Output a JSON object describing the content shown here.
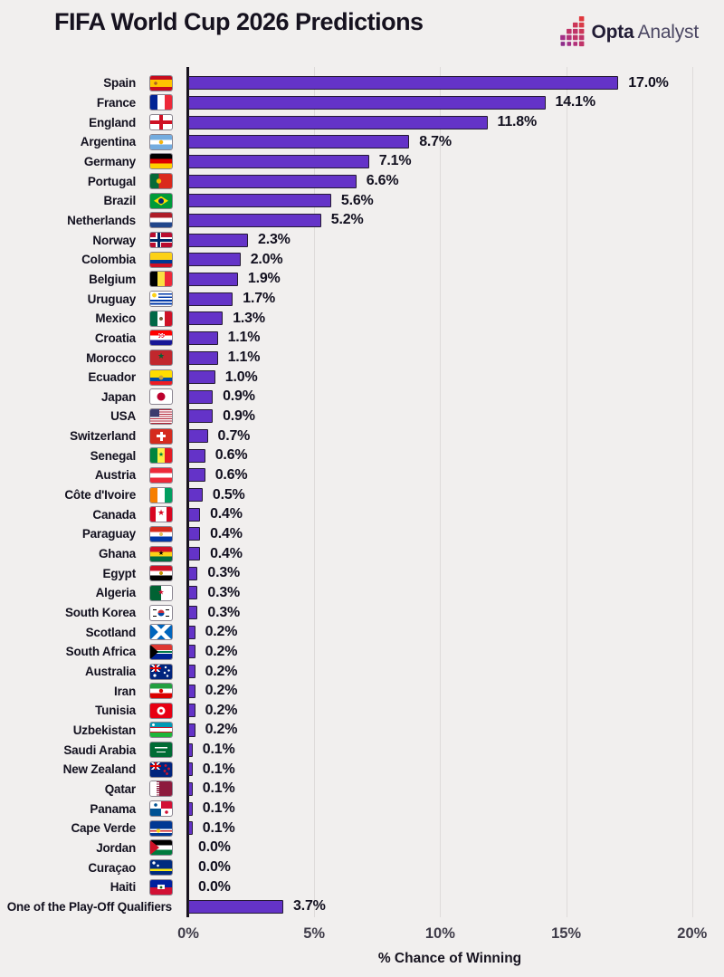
{
  "header": {
    "title": "FIFA World Cup 2026 Predictions",
    "logo": {
      "brand_bold": "Opta",
      "brand_light": "Analyst"
    }
  },
  "colors": {
    "background": "#f1efee",
    "bar_fill": "#6433c8",
    "bar_border": "#241a33",
    "axis_line": "#17121d",
    "gridline": "#dedbda",
    "logo_palette": [
      "#e0383d",
      "#d83a47",
      "#cc3658",
      "#c03469",
      "#b23179",
      "#a33087",
      "#8e2d8a"
    ]
  },
  "chart_data": {
    "type": "bar",
    "orientation": "horizontal",
    "title": "FIFA World Cup 2026 Predictions",
    "xlabel": "% Chance of Winning",
    "x_ticks": [
      "0%",
      "5%",
      "10%",
      "15%",
      "20%"
    ],
    "x_tick_values": [
      0,
      5,
      10,
      15,
      20
    ],
    "xlim": [
      0,
      21
    ],
    "grid": true,
    "legend": false,
    "categories": [
      "Spain",
      "France",
      "England",
      "Argentina",
      "Germany",
      "Portugal",
      "Brazil",
      "Netherlands",
      "Norway",
      "Colombia",
      "Belgium",
      "Uruguay",
      "Mexico",
      "Croatia",
      "Morocco",
      "Ecuador",
      "Japan",
      "USA",
      "Switzerland",
      "Senegal",
      "Austria",
      "Côte d'Ivoire",
      "Canada",
      "Paraguay",
      "Ghana",
      "Egypt",
      "Algeria",
      "South Korea",
      "Scotland",
      "South Africa",
      "Australia",
      "Iran",
      "Tunisia",
      "Uzbekistan",
      "Saudi Arabia",
      "New Zealand",
      "Qatar",
      "Panama",
      "Cape Verde",
      "Jordan",
      "Curaçao",
      "Haiti",
      "One of the Play-Off Qualifiers"
    ],
    "values": [
      17.0,
      14.1,
      11.8,
      8.7,
      7.1,
      6.6,
      5.6,
      5.2,
      2.3,
      2.0,
      1.9,
      1.7,
      1.3,
      1.1,
      1.1,
      1.0,
      0.9,
      0.9,
      0.7,
      0.6,
      0.6,
      0.5,
      0.4,
      0.4,
      0.4,
      0.3,
      0.3,
      0.3,
      0.2,
      0.2,
      0.2,
      0.2,
      0.2,
      0.2,
      0.1,
      0.1,
      0.1,
      0.1,
      0.1,
      0.0,
      0.0,
      0.0,
      3.7
    ],
    "value_labels": [
      "17.0%",
      "14.1%",
      "11.8%",
      "8.7%",
      "7.1%",
      "6.6%",
      "5.6%",
      "5.2%",
      "2.3%",
      "2.0%",
      "1.9%",
      "1.7%",
      "1.3%",
      "1.1%",
      "1.1%",
      "1.0%",
      "0.9%",
      "0.9%",
      "0.7%",
      "0.6%",
      "0.6%",
      "0.5%",
      "0.4%",
      "0.4%",
      "0.4%",
      "0.3%",
      "0.3%",
      "0.3%",
      "0.2%",
      "0.2%",
      "0.2%",
      "0.2%",
      "0.2%",
      "0.2%",
      "0.1%",
      "0.1%",
      "0.1%",
      "0.1%",
      "0.1%",
      "0.0%",
      "0.0%",
      "0.0%",
      "3.7%"
    ],
    "flags": [
      "spain",
      "france",
      "england",
      "argentina",
      "germany",
      "portugal",
      "brazil",
      "netherlands",
      "norway",
      "colombia",
      "belgium",
      "uruguay",
      "mexico",
      "croatia",
      "morocco",
      "ecuador",
      "japan",
      "usa",
      "switzerland",
      "senegal",
      "austria",
      "cote-divoire",
      "canada",
      "paraguay",
      "ghana",
      "egypt",
      "algeria",
      "south-korea",
      "scotland",
      "south-africa",
      "australia",
      "iran",
      "tunisia",
      "uzbekistan",
      "saudi-arabia",
      "new-zealand",
      "qatar",
      "panama",
      "cape-verde",
      "jordan",
      "curacao",
      "haiti",
      null
    ]
  }
}
